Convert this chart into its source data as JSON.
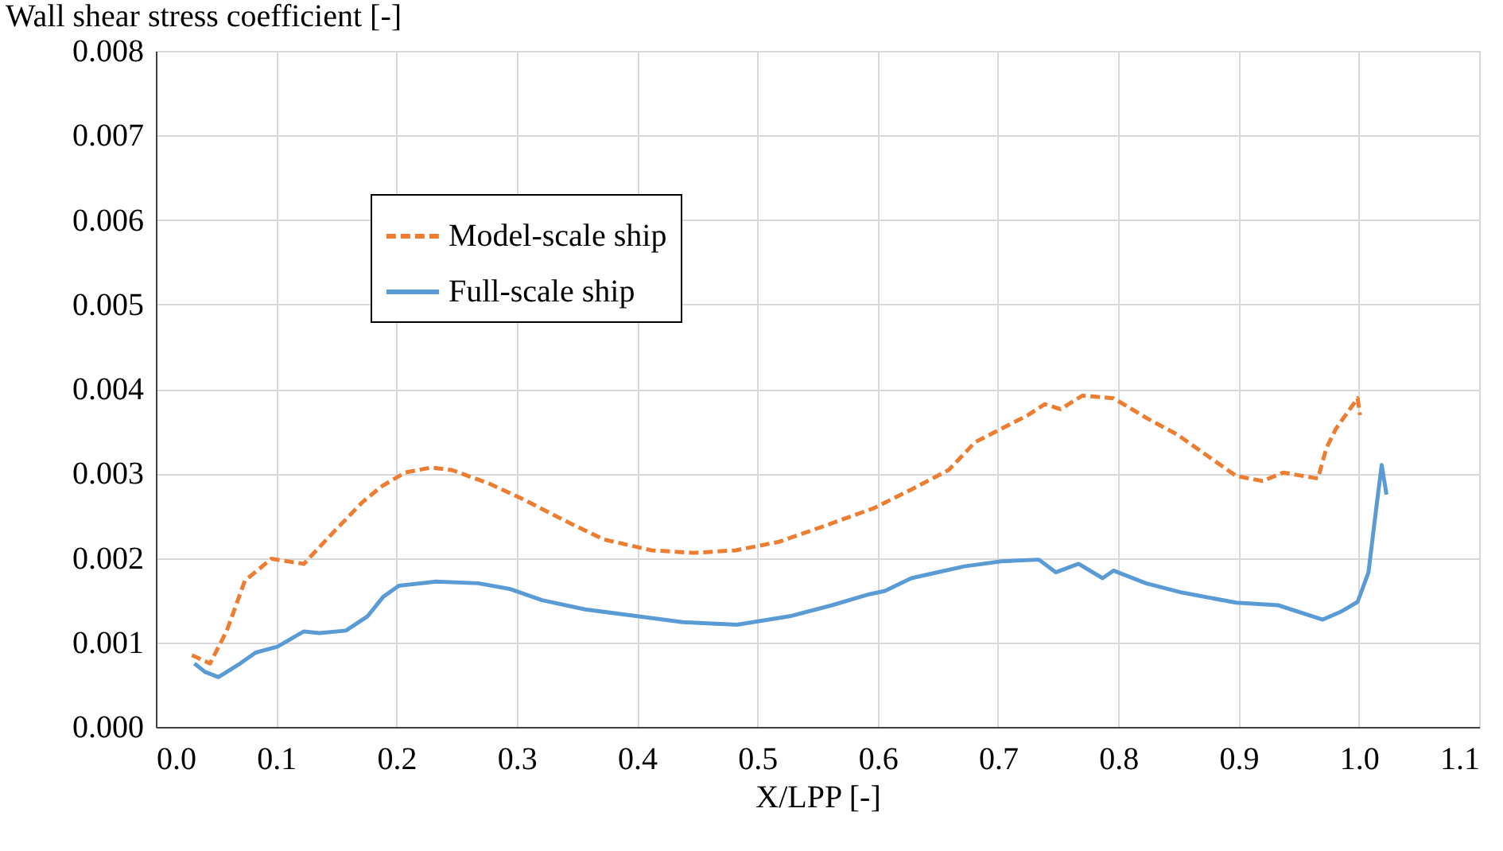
{
  "chart_data": {
    "type": "line",
    "ylabel": "Wall shear stress coefficient [-]",
    "xlabel": "X/LPP [-]",
    "xlim": [
      0,
      1.1
    ],
    "ylim": [
      0,
      0.008
    ],
    "xticks": [
      {
        "value": 0,
        "label": "0.0"
      },
      0.1,
      0.2,
      0.3,
      0.4,
      0.5,
      0.6,
      0.7,
      0.8,
      0.9,
      {
        "value": 1,
        "label": "1.0"
      },
      1.1
    ],
    "yticks": [
      {
        "value": 0,
        "label": "0.000"
      },
      {
        "value": 0.001,
        "label": "0.001"
      },
      {
        "value": 0.002,
        "label": "0.002"
      },
      {
        "value": 0.003,
        "label": "0.003"
      },
      {
        "value": 0.004,
        "label": "0.004"
      },
      {
        "value": 0.005,
        "label": "0.005"
      },
      {
        "value": 0.006,
        "label": "0.006"
      },
      {
        "value": 0.007,
        "label": "0.007"
      },
      {
        "value": 0.008,
        "label": "0.008"
      }
    ],
    "grid": true,
    "legend": "top left",
    "marker": "none",
    "series": [
      {
        "name": "Model-scale ship",
        "color": "#ed7d31",
        "line_style": "dashed",
        "x": [
          0.03,
          0.045,
          0.059,
          0.074,
          0.096,
          0.123,
          0.144,
          0.171,
          0.187,
          0.207,
          0.229,
          0.246,
          0.277,
          0.303,
          0.343,
          0.372,
          0.412,
          0.447,
          0.482,
          0.518,
          0.558,
          0.597,
          0.628,
          0.659,
          0.681,
          0.703,
          0.725,
          0.739,
          0.752,
          0.77,
          0.796,
          0.823,
          0.849,
          0.875,
          0.898,
          0.92,
          0.937,
          0.966,
          0.973,
          0.981,
          0.999,
          1.001
        ],
        "values": [
          0.00085,
          0.00075,
          0.00114,
          0.00173,
          0.00199,
          0.00193,
          0.00225,
          0.00265,
          0.00284,
          0.00301,
          0.00307,
          0.00304,
          0.00288,
          0.00271,
          0.00242,
          0.00222,
          0.00209,
          0.00206,
          0.00209,
          0.00219,
          0.00239,
          0.00259,
          0.00281,
          0.00304,
          0.00337,
          0.00353,
          0.00369,
          0.00382,
          0.00376,
          0.00392,
          0.00389,
          0.00366,
          0.00346,
          0.0032,
          0.00297,
          0.00291,
          0.00301,
          0.00294,
          0.0033,
          0.00353,
          0.00389,
          0.00369
        ]
      },
      {
        "name": "Full-scale ship",
        "color": "#5b9bd5",
        "line_style": "solid",
        "x": [
          0.032,
          0.041,
          0.052,
          0.07,
          0.083,
          0.101,
          0.123,
          0.136,
          0.158,
          0.176,
          0.189,
          0.202,
          0.233,
          0.268,
          0.295,
          0.321,
          0.357,
          0.39,
          0.438,
          0.483,
          0.527,
          0.562,
          0.593,
          0.606,
          0.628,
          0.65,
          0.672,
          0.703,
          0.734,
          0.748,
          0.767,
          0.787,
          0.796,
          0.823,
          0.853,
          0.898,
          0.933,
          0.97,
          0.986,
          0.999,
          1.008,
          1.015,
          1.019,
          1.023
        ],
        "values": [
          0.00075,
          0.00065,
          0.00059,
          0.00075,
          0.00088,
          0.00095,
          0.00113,
          0.00111,
          0.00114,
          0.00131,
          0.00154,
          0.00167,
          0.00172,
          0.0017,
          0.00163,
          0.0015,
          0.00139,
          0.00133,
          0.00124,
          0.00121,
          0.00131,
          0.00144,
          0.00157,
          0.00161,
          0.00176,
          0.00183,
          0.0019,
          0.00196,
          0.00198,
          0.00183,
          0.00193,
          0.00176,
          0.00185,
          0.0017,
          0.00159,
          0.00147,
          0.00144,
          0.00127,
          0.00137,
          0.00148,
          0.00183,
          0.00265,
          0.0031,
          0.00275
        ]
      }
    ]
  }
}
